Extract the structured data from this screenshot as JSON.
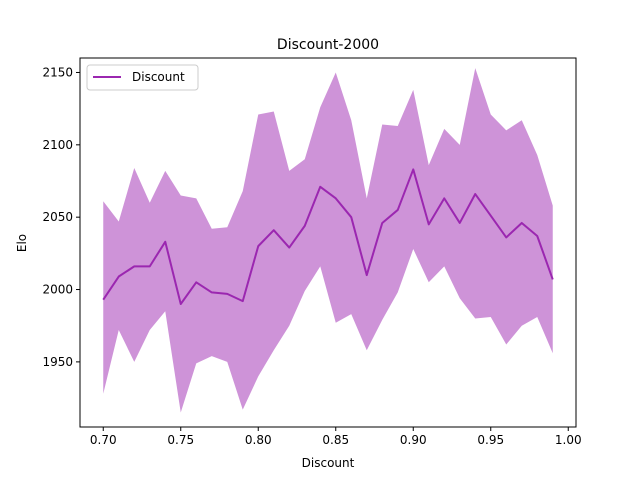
{
  "chart_data": {
    "type": "line",
    "title": "Discount-2000",
    "xlabel": "Discount",
    "ylabel": "Elo",
    "xlim": [
      0.685,
      1.005
    ],
    "ylim": [
      1905,
      2160
    ],
    "xticks": [
      0.7,
      0.75,
      0.8,
      0.85,
      0.9,
      0.95,
      1.0
    ],
    "xtick_labels": [
      "0.70",
      "0.75",
      "0.80",
      "0.85",
      "0.90",
      "0.95",
      "1.00"
    ],
    "yticks": [
      1950,
      2000,
      2050,
      2100,
      2150
    ],
    "ytick_labels": [
      "1950",
      "2000",
      "2050",
      "2100",
      "2150"
    ],
    "grid": false,
    "legend": {
      "position": "upper-left",
      "entries": [
        "Discount"
      ]
    },
    "colors": {
      "line": "#9b27b0",
      "band": "#ce93d8"
    },
    "x": [
      0.7,
      0.71,
      0.72,
      0.73,
      0.74,
      0.75,
      0.76,
      0.77,
      0.78,
      0.79,
      0.8,
      0.81,
      0.82,
      0.83,
      0.84,
      0.85,
      0.86,
      0.87,
      0.88,
      0.89,
      0.9,
      0.91,
      0.92,
      0.93,
      0.94,
      0.95,
      0.96,
      0.97,
      0.98,
      0.99
    ],
    "series": [
      {
        "name": "Discount",
        "values": [
          1993,
          2009,
          2016,
          2016,
          2033,
          1990,
          2005,
          1998,
          1997,
          1992,
          2030,
          2041,
          2029,
          2044,
          2071,
          2063,
          2050,
          2010,
          2046,
          2055,
          2083,
          2045,
          2063,
          2046,
          2066,
          2051,
          2036,
          2046,
          2037,
          2007
        ],
        "upper": [
          2061,
          2047,
          2084,
          2060,
          2082,
          2065,
          2063,
          2042,
          2043,
          2068,
          2121,
          2123,
          2082,
          2090,
          2126,
          2150,
          2117,
          2063,
          2114,
          2113,
          2138,
          2086,
          2111,
          2100,
          2153,
          2121,
          2110,
          2117,
          2093,
          2058
        ],
        "lower": [
          1928,
          1972,
          1950,
          1972,
          1985,
          1915,
          1949,
          1954,
          1950,
          1917,
          1940,
          1958,
          1975,
          1999,
          2016,
          1977,
          1983,
          1958,
          1979,
          1998,
          2028,
          2005,
          2016,
          1994,
          1980,
          1981,
          1962,
          1975,
          1981,
          1956
        ]
      }
    ]
  }
}
